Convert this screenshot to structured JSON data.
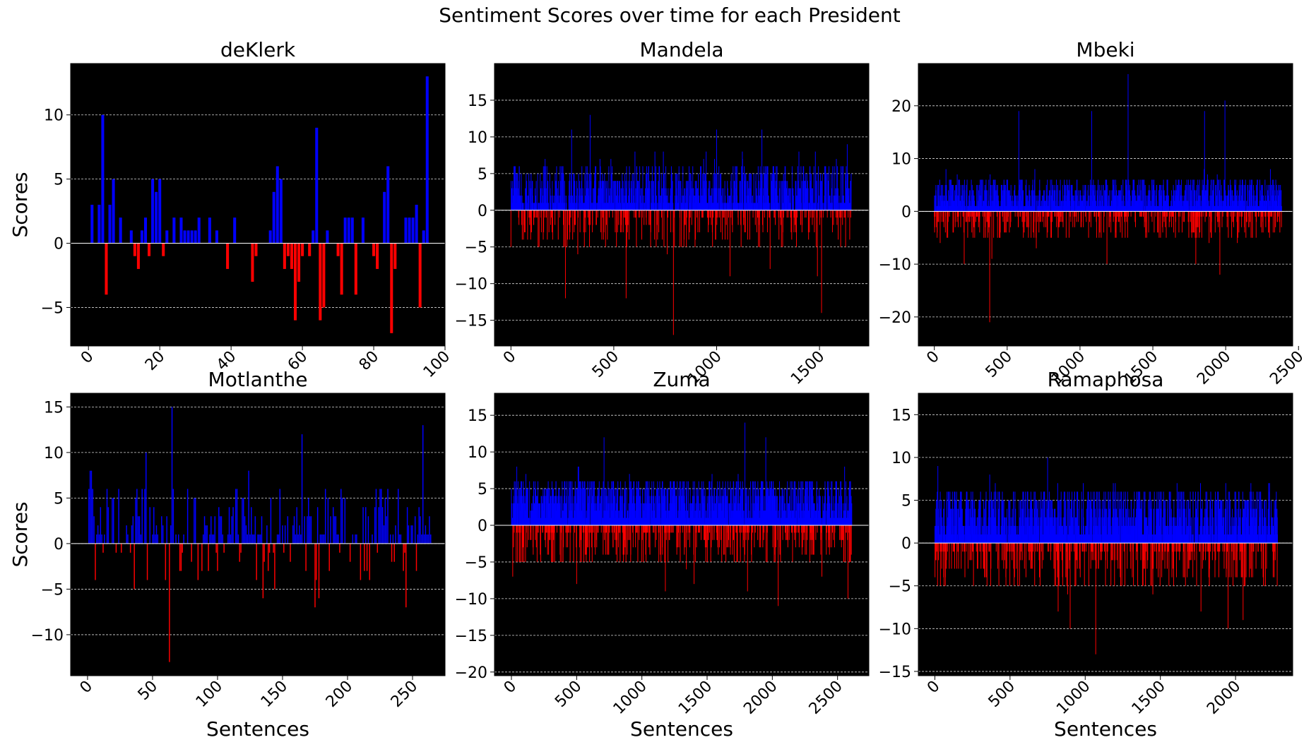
{
  "figure": {
    "suptitle": "Sentiment Scores over time for each President",
    "colors": {
      "positive": "#0000ff",
      "negative": "#ff0000",
      "background": "#000000",
      "zero_line": "#ffffff",
      "grid": "#ffffff"
    }
  },
  "chart_data": [
    {
      "type": "bar",
      "title": "deKlerk",
      "xlabel": "",
      "ylabel": "Scores",
      "xlim": [
        -5,
        100
      ],
      "ylim": [
        -8,
        14
      ],
      "xticks": [
        0,
        20,
        40,
        60,
        80,
        100
      ],
      "yticks": [
        -5,
        0,
        5,
        10
      ],
      "grid": "y, dashed",
      "n": 96,
      "values": [
        0,
        3,
        0,
        3,
        10,
        -4,
        3,
        5,
        0,
        2,
        0,
        0,
        1,
        -1,
        -2,
        1,
        2,
        -1,
        5,
        4,
        5,
        -1,
        1,
        0,
        2,
        0,
        2,
        1,
        1,
        1,
        1,
        2,
        0,
        0,
        2,
        0,
        1,
        0,
        0,
        -2,
        0,
        2,
        0,
        0,
        0,
        0,
        -3,
        -1,
        0,
        0,
        0,
        1,
        4,
        6,
        5,
        -2,
        -1,
        -2,
        -6,
        -3,
        -1,
        0,
        -1,
        1,
        9,
        -6,
        -5,
        1,
        0,
        0,
        -1,
        -4,
        2,
        2,
        2,
        -4,
        0,
        2,
        0,
        0,
        -1,
        -2,
        0,
        4,
        6,
        -7,
        -2,
        0,
        0,
        2,
        2,
        2,
        3,
        -5,
        1,
        13
      ]
    },
    {
      "type": "bar",
      "title": "Mandela",
      "xlabel": "",
      "ylabel": "",
      "xlim": [
        -80,
        1740
      ],
      "ylim": [
        -18.5,
        20
      ],
      "xticks": [
        0,
        500,
        1000,
        1500
      ],
      "yticks": [
        -15,
        -10,
        -5,
        0,
        5,
        10,
        15
      ],
      "grid": "y, dashed",
      "n": 1655,
      "peaks": [
        [
          18,
          6
        ],
        [
          70,
          3
        ],
        [
          150,
          4
        ],
        [
          265,
          -12
        ],
        [
          295,
          11
        ],
        [
          325,
          -6
        ],
        [
          385,
          13
        ],
        [
          560,
          -12
        ],
        [
          610,
          -5
        ],
        [
          700,
          8
        ],
        [
          760,
          -6
        ],
        [
          790,
          -17
        ],
        [
          810,
          5
        ],
        [
          1000,
          11
        ],
        [
          1065,
          -9
        ],
        [
          1125,
          8
        ],
        [
          1220,
          11
        ],
        [
          1260,
          -8
        ],
        [
          1325,
          5
        ],
        [
          1490,
          -9
        ],
        [
          1510,
          -14
        ],
        [
          1635,
          9
        ]
      ]
    },
    {
      "type": "bar",
      "title": "Mbeki",
      "xlabel": "",
      "ylabel": "",
      "xlim": [
        -110,
        2460
      ],
      "ylim": [
        -25.5,
        28
      ],
      "xticks": [
        0,
        500,
        1000,
        1500,
        2000,
        2500
      ],
      "yticks": [
        -20,
        -10,
        0,
        10,
        20
      ],
      "grid": "y, dashed",
      "n": 2385,
      "peaks": [
        [
          40,
          -6
        ],
        [
          80,
          8
        ],
        [
          205,
          -10
        ],
        [
          380,
          -21
        ],
        [
          395,
          -9
        ],
        [
          580,
          19
        ],
        [
          700,
          -7
        ],
        [
          1080,
          19
        ],
        [
          1185,
          -10
        ],
        [
          1330,
          26
        ],
        [
          1795,
          -10
        ],
        [
          1855,
          19
        ],
        [
          1960,
          -12
        ],
        [
          1995,
          21
        ],
        [
          2080,
          -6
        ]
      ]
    },
    {
      "type": "bar",
      "title": "Motlanthe",
      "xlabel": "Sentences",
      "ylabel": "Scores",
      "xlim": [
        -13,
        275
      ],
      "ylim": [
        -14.5,
        16.5
      ],
      "xticks": [
        0,
        50,
        100,
        150,
        200,
        250
      ],
      "yticks": [
        -10,
        -5,
        0,
        5,
        10,
        15
      ],
      "grid": "y, dashed",
      "n": 265,
      "peaks": [
        [
          3,
          8
        ],
        [
          12,
          -1
        ],
        [
          45,
          10
        ],
        [
          63,
          -13
        ],
        [
          65,
          15
        ],
        [
          85,
          -4
        ],
        [
          135,
          -6
        ],
        [
          165,
          12
        ],
        [
          175,
          -7
        ],
        [
          178,
          -6
        ],
        [
          215,
          -3
        ],
        [
          245,
          -7
        ],
        [
          258,
          13
        ]
      ]
    },
    {
      "type": "bar",
      "title": "Zuma",
      "xlabel": "Sentences",
      "ylabel": "",
      "xlim": [
        -130,
        2740
      ],
      "ylim": [
        -20.5,
        18
      ],
      "xticks": [
        0,
        500,
        1000,
        1500,
        2000,
        2500
      ],
      "yticks": [
        -20,
        -15,
        -10,
        -5,
        0,
        5,
        10,
        15
      ],
      "grid": "y, dashed",
      "n": 2610,
      "peaks": [
        [
          10,
          -7
        ],
        [
          500,
          -8
        ],
        [
          710,
          12
        ],
        [
          1010,
          -5
        ],
        [
          1180,
          -9
        ],
        [
          1400,
          -8
        ],
        [
          1790,
          14
        ],
        [
          1810,
          -9
        ],
        [
          1950,
          12
        ],
        [
          2045,
          -11
        ],
        [
          2380,
          -7
        ],
        [
          2580,
          -10
        ],
        [
          2600,
          6
        ]
      ]
    },
    {
      "type": "bar",
      "title": "Ramaphosa",
      "xlabel": "Sentences",
      "ylabel": "",
      "xlim": [
        -110,
        2380
      ],
      "ylim": [
        -15.5,
        17.5
      ],
      "xticks": [
        0,
        500,
        1000,
        1500,
        2000
      ],
      "yticks": [
        -15,
        -10,
        -5,
        0,
        5,
        10,
        15
      ],
      "grid": "y, dashed",
      "n": 2280,
      "peaks": [
        [
          20,
          9
        ],
        [
          750,
          10
        ],
        [
          820,
          -8
        ],
        [
          900,
          -10
        ],
        [
          1070,
          -13
        ],
        [
          1200,
          7
        ],
        [
          1450,
          -6
        ],
        [
          1770,
          -8
        ],
        [
          1950,
          -10
        ],
        [
          2050,
          -9
        ],
        [
          2220,
          7
        ]
      ]
    }
  ]
}
